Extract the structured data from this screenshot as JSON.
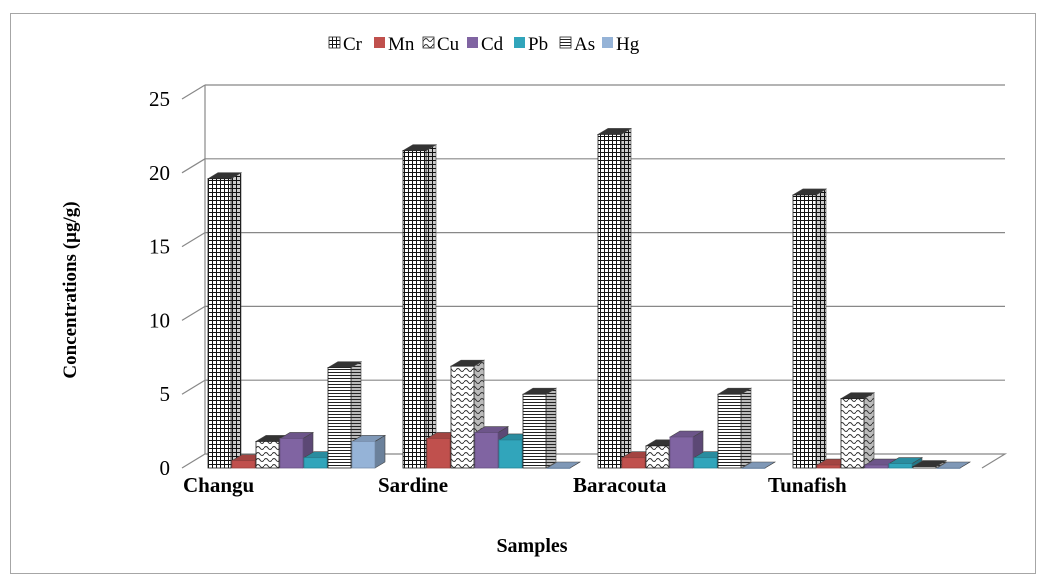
{
  "chart_data": {
    "type": "bar",
    "title": "",
    "xlabel": "Samples",
    "ylabel": "Concentrations (µg/g)",
    "ylim": [
      0,
      25
    ],
    "yticks": [
      0,
      5,
      10,
      15,
      20,
      25
    ],
    "grid": true,
    "legend_position": "top",
    "categories": [
      "Changu",
      "Sardine",
      "Baracouta",
      "Tunafish"
    ],
    "series": [
      {
        "name": "Cr",
        "color": "#1a1a1a",
        "pattern": "grid",
        "values": [
          19.6,
          21.5,
          22.6,
          18.5
        ]
      },
      {
        "name": "Mn",
        "color": "#c0504d",
        "pattern": "solid",
        "values": [
          0.5,
          2.0,
          0.7,
          0.2
        ]
      },
      {
        "name": "Cu",
        "color": "#555555",
        "pattern": "wave",
        "values": [
          1.8,
          6.9,
          1.5,
          4.7
        ]
      },
      {
        "name": "Cd",
        "color": "#8064a2",
        "pattern": "solid",
        "values": [
          2.0,
          2.4,
          2.1,
          0.2
        ]
      },
      {
        "name": "Pb",
        "color": "#31a5bb",
        "pattern": "solid",
        "values": [
          0.7,
          1.9,
          0.7,
          0.3
        ]
      },
      {
        "name": "As",
        "color": "#333333",
        "pattern": "hlines",
        "values": [
          6.8,
          5.0,
          5.0,
          0.1
        ]
      },
      {
        "name": "Hg",
        "color": "#95b3d7",
        "pattern": "solid",
        "values": [
          1.8,
          0.0,
          0.0,
          0.0
        ]
      }
    ]
  }
}
